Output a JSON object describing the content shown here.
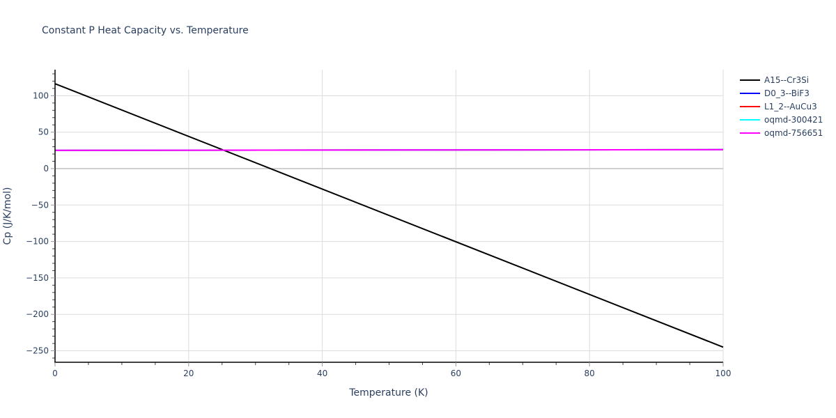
{
  "chart_data": {
    "type": "line",
    "title": "Constant P Heat Capacity vs. Temperature",
    "xlabel": "Temperature (K)",
    "ylabel": "Cp (J/K/mol)",
    "xlim": [
      0,
      100
    ],
    "ylim": [
      -265,
      135
    ],
    "x_ticks": [
      0,
      20,
      40,
      60,
      80,
      100
    ],
    "y_ticks": [
      100,
      50,
      0,
      -50,
      -100,
      -150,
      -200,
      -250
    ],
    "grid": true,
    "legend_position": "right",
    "series": [
      {
        "name": "A15--Cr3Si",
        "color": "#000000",
        "x": [
          0,
          100
        ],
        "values": [
          116.5,
          -245
        ]
      },
      {
        "name": "D0_3--BiF3",
        "color": "#0000ff",
        "x": [
          0,
          100
        ],
        "values": [
          25,
          26
        ]
      },
      {
        "name": "L1_2--AuCu3",
        "color": "#ff0000",
        "x": [
          0,
          100
        ],
        "values": [
          25,
          26
        ]
      },
      {
        "name": "oqmd-300421",
        "color": "#00ffff",
        "x": [
          0,
          100
        ],
        "values": [
          25,
          26
        ]
      },
      {
        "name": "oqmd-756651",
        "color": "#ff00ff",
        "x": [
          0,
          100
        ],
        "values": [
          25,
          26
        ]
      }
    ]
  },
  "labels": {
    "title": "Constant P Heat Capacity vs. Temperature",
    "xlabel": "Temperature (K)",
    "ylabel": "Cp (J/K/mol)",
    "x_ticks": [
      "0",
      "20",
      "40",
      "60",
      "80",
      "100"
    ],
    "y_ticks": [
      "100",
      "50",
      "0",
      "−50",
      "−100",
      "−150",
      "−200",
      "−250"
    ]
  },
  "legend": [
    {
      "label": "A15--Cr3Si",
      "color": "#000000"
    },
    {
      "label": "D0_3--BiF3",
      "color": "#0000ff"
    },
    {
      "label": "L1_2--AuCu3",
      "color": "#ff0000"
    },
    {
      "label": "oqmd-300421",
      "color": "#00ffff"
    },
    {
      "label": "oqmd-756651",
      "color": "#ff00ff"
    }
  ]
}
